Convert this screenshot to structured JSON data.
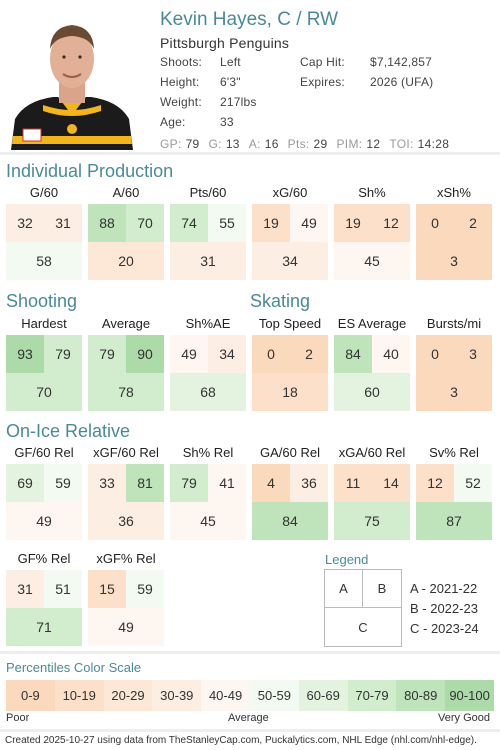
{
  "player": {
    "name": "Kevin Hayes, C / RW",
    "team": "Pittsburgh Penguins",
    "info_left": [
      {
        "label": "Shoots:",
        "value": "Left"
      },
      {
        "label": "Height:",
        "value": "6'3\""
      },
      {
        "label": "Weight:",
        "value": "217lbs"
      },
      {
        "label": "Age:",
        "value": "33"
      }
    ],
    "info_right": [
      {
        "label": "Cap Hit:",
        "value": "$7,142,857"
      },
      {
        "label": "Expires:",
        "value": "2026 (UFA)"
      }
    ],
    "statline": [
      {
        "label": "GP:",
        "value": "79"
      },
      {
        "label": "G:",
        "value": "13"
      },
      {
        "label": "A:",
        "value": "16"
      },
      {
        "label": "Pts:",
        "value": "29"
      },
      {
        "label": "PIM:",
        "value": "12"
      },
      {
        "label": "TOI:",
        "value": "14:28"
      }
    ],
    "photo_icon": "player-headshot"
  },
  "sections": {
    "individual": "Individual Production",
    "shooting": "Shooting",
    "skating": "Skating",
    "onice": "On-Ice Relative"
  },
  "individual_stats": [
    {
      "title": "G/60",
      "a": 32,
      "b": 31,
      "c": 58
    },
    {
      "title": "A/60",
      "a": 88,
      "b": 70,
      "c": 20
    },
    {
      "title": "Pts/60",
      "a": 74,
      "b": 55,
      "c": 31
    },
    {
      "title": "xG/60",
      "a": 19,
      "b": 49,
      "c": 34
    },
    {
      "title": "Sh%",
      "a": 19,
      "b": 12,
      "c": 45
    },
    {
      "title": "xSh%",
      "a": 0,
      "b": 2,
      "c": 3
    }
  ],
  "shooting_stats": [
    {
      "title": "Hardest",
      "a": 93,
      "b": 79,
      "c": 70
    },
    {
      "title": "Average",
      "a": 79,
      "b": 90,
      "c": 78
    },
    {
      "title": "Sh%AE",
      "a": 49,
      "b": 34,
      "c": 68
    }
  ],
  "skating_stats": [
    {
      "title": "Top Speed",
      "a": 0,
      "b": 2,
      "c": 18
    },
    {
      "title": "ES Average",
      "a": 84,
      "b": 40,
      "c": 60
    },
    {
      "title": "Bursts/mi",
      "a": 0,
      "b": 3,
      "c": 3
    }
  ],
  "onice_stats": [
    {
      "title": "GF/60 Rel",
      "a": 69,
      "b": 59,
      "c": 49
    },
    {
      "title": "xGF/60 Rel",
      "a": 33,
      "b": 81,
      "c": 36
    },
    {
      "title": "Sh% Rel",
      "a": 79,
      "b": 41,
      "c": 45
    },
    {
      "title": "GA/60 Rel",
      "a": 4,
      "b": 36,
      "c": 84
    },
    {
      "title": "xGA/60 Rel",
      "a": 11,
      "b": 14,
      "c": 75
    },
    {
      "title": "Sv% Rel",
      "a": 12,
      "b": 52,
      "c": 87
    },
    {
      "title": "GF% Rel",
      "a": 31,
      "b": 51,
      "c": 71
    },
    {
      "title": "xGF% Rel",
      "a": 15,
      "b": 59,
      "c": 49
    }
  ],
  "legend": {
    "title": "Legend",
    "a": "A",
    "b": "B",
    "c": "C",
    "lines": [
      "A - 2021-22",
      "B - 2022-23",
      "C - 2023-24"
    ]
  },
  "scale": {
    "title": "Percentiles Color Scale",
    "bins": [
      "0-9",
      "10-19",
      "20-29",
      "30-39",
      "40-49",
      "50-59",
      "60-69",
      "70-79",
      "80-89",
      "90-100"
    ],
    "colors": [
      "#fbd9bd",
      "#fce0c9",
      "#fde7d6",
      "#fdeee3",
      "#fef6f0",
      "#f3faf1",
      "#e3f3df",
      "#d2ecce",
      "#bfe3bb",
      "#acdaa8"
    ],
    "poor": "Poor",
    "average": "Average",
    "very_good": "Very Good"
  },
  "footer": "Created 2025-10-27 using data from TheStanleyCap.com, Puckalytics.com, NHL Edge (nhl.com/nhl-edge)."
}
